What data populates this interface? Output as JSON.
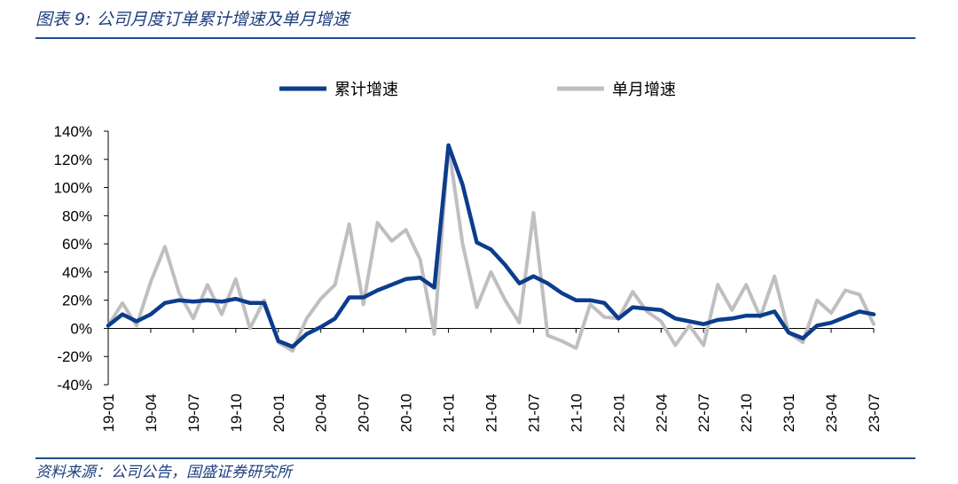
{
  "header": {
    "title": "图表 9:  公司月度订单累计增速及单月增速"
  },
  "footer": {
    "source": "资料来源：公司公告，国盛证券研究所"
  },
  "colors": {
    "cumulative": "#0c3c8c",
    "monthly": "#bfbfbf",
    "rule": "#1f4e8c",
    "title": "#1f3f7f"
  },
  "chart_data": {
    "type": "line",
    "title": "图表 9:  公司月度订单累计增速及单月增速",
    "xlabel": "",
    "ylabel": "",
    "ylim": [
      -40,
      140
    ],
    "yticks": [
      "140%",
      "120%",
      "100%",
      "80%",
      "60%",
      "40%",
      "20%",
      "0%",
      "-20%",
      "-40%"
    ],
    "xtick_labels": [
      "19-01",
      "19-04",
      "19-07",
      "19-10",
      "20-01",
      "20-04",
      "20-07",
      "20-10",
      "21-01",
      "21-04",
      "21-07",
      "21-10",
      "22-01",
      "22-04",
      "22-07",
      "22-10",
      "23-01",
      "23-04",
      "23-07"
    ],
    "legend_position": "top",
    "grid": false,
    "x": [
      "19-01",
      "19-02",
      "19-03",
      "19-04",
      "19-05",
      "19-06",
      "19-07",
      "19-08",
      "19-09",
      "19-10",
      "19-11",
      "19-12",
      "20-01",
      "20-02",
      "20-03",
      "20-04",
      "20-05",
      "20-06",
      "20-07",
      "20-08",
      "20-09",
      "20-10",
      "20-11",
      "20-12",
      "21-01",
      "21-02",
      "21-03",
      "21-04",
      "21-05",
      "21-06",
      "21-07",
      "21-08",
      "21-09",
      "21-10",
      "21-11",
      "21-12",
      "22-01",
      "22-02",
      "22-03",
      "22-04",
      "22-05",
      "22-06",
      "22-07",
      "22-08",
      "22-09",
      "22-10",
      "22-11",
      "22-12",
      "23-01",
      "23-02",
      "23-03",
      "23-04",
      "23-05",
      "23-06",
      "23-07"
    ],
    "series": [
      {
        "name": "累计增速",
        "values": [
          2,
          10,
          5,
          10,
          18,
          20,
          19,
          20,
          19,
          21,
          18,
          18,
          -9,
          -13,
          -4,
          1,
          7,
          22,
          22,
          27,
          31,
          35,
          36,
          29,
          130,
          102,
          61,
          56,
          45,
          32,
          37,
          32,
          25,
          20,
          20,
          18,
          7,
          15,
          14,
          13,
          7,
          5,
          3,
          6,
          7,
          9,
          9,
          12,
          -3,
          -7,
          2,
          4,
          8,
          12,
          10
        ]
      },
      {
        "name": "单月增速",
        "values": [
          2,
          18,
          2,
          33,
          58,
          25,
          7,
          31,
          10,
          35,
          0,
          20,
          -10,
          -16,
          7,
          21,
          31,
          74,
          17,
          75,
          62,
          70,
          49,
          -4,
          130,
          60,
          15,
          40,
          20,
          4,
          82,
          -5,
          -9,
          -14,
          17,
          8,
          7,
          26,
          12,
          5,
          -12,
          2,
          -12,
          31,
          13,
          31,
          8,
          37,
          -3,
          -10,
          20,
          11,
          27,
          24,
          3
        ]
      }
    ]
  }
}
